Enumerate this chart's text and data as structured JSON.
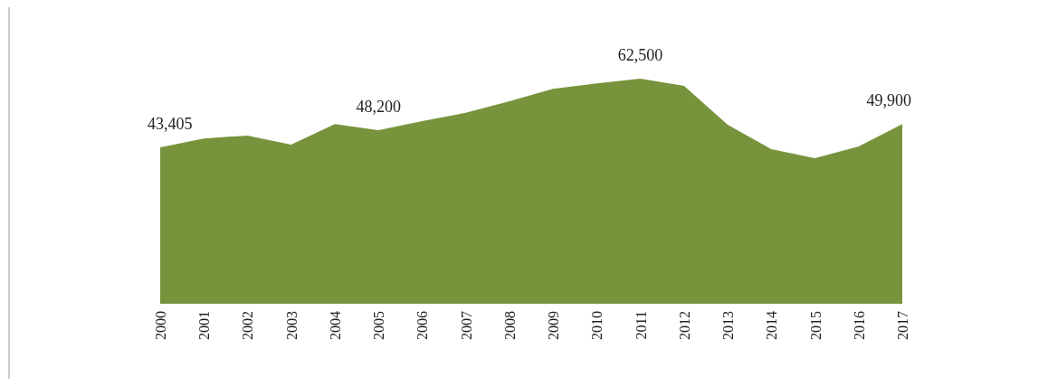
{
  "chart_data": {
    "type": "area",
    "categories": [
      "2000",
      "2001",
      "2002",
      "2003",
      "2004",
      "2005",
      "2006",
      "2007",
      "2008",
      "2009",
      "2010",
      "2011",
      "2012",
      "2013",
      "2014",
      "2015",
      "2016",
      "2017"
    ],
    "series": [
      {
        "color": "#77933c",
        "values": [
          43405,
          45900,
          46700,
          44200,
          49900,
          48200,
          50700,
          53000,
          56200,
          59700,
          61200,
          62500,
          60500,
          49700,
          42900,
          40400,
          43700,
          49900
        ],
        "value_labels": [
          "43,405",
          null,
          null,
          null,
          null,
          "48,200",
          null,
          null,
          null,
          null,
          null,
          "62,500",
          null,
          null,
          null,
          null,
          null,
          "49,900"
        ]
      }
    ]
  }
}
